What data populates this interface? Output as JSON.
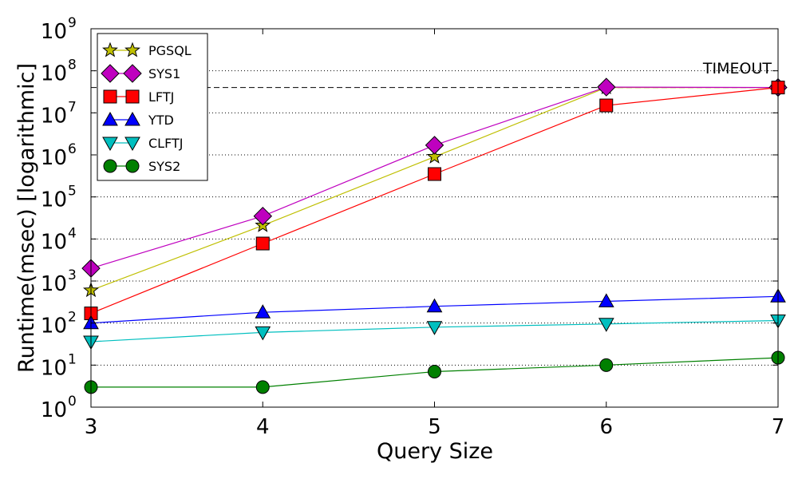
{
  "chart_data": {
    "type": "line",
    "title": "",
    "xlabel": "Query Size",
    "ylabel": "Runtime(msec) [logarithmic]",
    "yscale": "log",
    "xlim": [
      3,
      7
    ],
    "ylim": [
      1,
      1000000000
    ],
    "x_ticks": [
      3,
      4,
      5,
      6,
      7
    ],
    "y_ticks": [
      {
        "value": 1,
        "base": "10",
        "exp": "0"
      },
      {
        "value": 10,
        "base": "10",
        "exp": "1"
      },
      {
        "value": 100,
        "base": "10",
        "exp": "2"
      },
      {
        "value": 1000,
        "base": "10",
        "exp": "3"
      },
      {
        "value": 10000,
        "base": "10",
        "exp": "4"
      },
      {
        "value": 100000,
        "base": "10",
        "exp": "5"
      },
      {
        "value": 1000000,
        "base": "10",
        "exp": "6"
      },
      {
        "value": 10000000,
        "base": "10",
        "exp": "7"
      },
      {
        "value": 100000000,
        "base": "10",
        "exp": "8"
      },
      {
        "value": 1000000000,
        "base": "10",
        "exp": "9"
      }
    ],
    "grid": "horizontal dotted",
    "legend_position": "top-left",
    "x": [
      3,
      4,
      5,
      6,
      7
    ],
    "series": [
      {
        "name": "PGSQL",
        "marker": "star",
        "color": "#bfbf00",
        "values": [
          600,
          21000,
          900000,
          40000000,
          40000000
        ]
      },
      {
        "name": "SYS1",
        "marker": "diamond",
        "color": "#bf00bf",
        "values": [
          2000,
          35000,
          1700000,
          41000000,
          40000000
        ]
      },
      {
        "name": "LFTJ",
        "marker": "square",
        "color": "#ff0000",
        "values": [
          170,
          7800,
          350000,
          15000000,
          40000000
        ]
      },
      {
        "name": "YTD",
        "marker": "triangle-up",
        "color": "#0000ff",
        "values": [
          100,
          180,
          250,
          330,
          430
        ]
      },
      {
        "name": "CLFTJ",
        "marker": "triangle-down",
        "color": "#00bfbf",
        "values": [
          36,
          60,
          80,
          95,
          115
        ]
      },
      {
        "name": "SYS2",
        "marker": "circle",
        "color": "#008000",
        "values": [
          3,
          3,
          7,
          10,
          15
        ]
      }
    ],
    "timeout": {
      "label": "TIMEOUT",
      "value": 40000000
    }
  }
}
